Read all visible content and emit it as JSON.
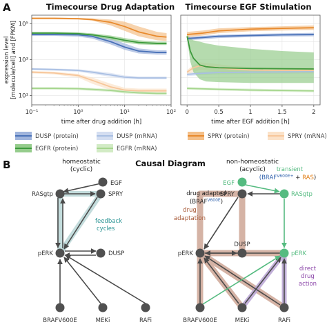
{
  "panels": {
    "a": "A",
    "b": "B"
  },
  "chart_data": [
    {
      "type": "line",
      "title": "Timecourse Drug Adaptation",
      "xlabel": "time after drug addition [h]",
      "ylabel_lines": [
        "expression level",
        "[molecule/cell] and [FPKM]"
      ],
      "xscale": "log",
      "yscale": "log",
      "xlim": [
        0.1,
        100
      ],
      "ylim": [
        3,
        300000
      ],
      "x_ticks": [
        0.1,
        1,
        10,
        100
      ],
      "x_tick_labels": [
        "10⁻¹",
        "10⁰",
        "10¹",
        "10²"
      ],
      "y_ticks": [
        10,
        1000,
        100000
      ],
      "y_tick_labels": [
        "10¹",
        "10³",
        "10⁵"
      ],
      "grid": true,
      "series": [
        {
          "key": "spry_p",
          "x": [
            0.1,
            0.3,
            1,
            2,
            5,
            10,
            20,
            50,
            80
          ],
          "y": [
            200000,
            200000,
            190000,
            170000,
            120000,
            70000,
            35000,
            20000,
            18000
          ],
          "lo": [
            180000,
            180000,
            170000,
            150000,
            80000,
            40000,
            20000,
            12000,
            11000
          ],
          "hi": [
            220000,
            220000,
            210000,
            200000,
            170000,
            130000,
            70000,
            35000,
            30000
          ]
        },
        {
          "key": "egfr_p",
          "x": [
            0.1,
            0.3,
            1,
            2,
            5,
            10,
            20,
            50,
            80
          ],
          "y": [
            30000,
            30000,
            28000,
            24000,
            17000,
            12000,
            9000,
            8000,
            8000
          ],
          "lo": [
            25000,
            25000,
            23000,
            19000,
            13000,
            9000,
            7000,
            6500,
            6500
          ],
          "hi": [
            35000,
            35000,
            33000,
            29000,
            22000,
            16000,
            12000,
            10000,
            10000
          ]
        },
        {
          "key": "dusp_p",
          "x": [
            0.1,
            0.3,
            1,
            2,
            5,
            10,
            20,
            50,
            80
          ],
          "y": [
            25000,
            25000,
            24000,
            20000,
            10000,
            5000,
            3000,
            2500,
            2500
          ],
          "lo": [
            21000,
            21000,
            19000,
            15000,
            7000,
            3500,
            2200,
            1900,
            1900
          ],
          "hi": [
            30000,
            30000,
            29000,
            26000,
            15000,
            8000,
            4200,
            3300,
            3300
          ]
        },
        {
          "key": "dusp_m",
          "x": [
            0.1,
            0.3,
            1,
            2,
            5,
            10,
            20,
            50,
            80
          ],
          "y": [
            300,
            280,
            250,
            200,
            140,
            105,
            95,
            95,
            95
          ],
          "lo": [
            260,
            240,
            210,
            160,
            110,
            85,
            80,
            80,
            80
          ],
          "hi": [
            340,
            320,
            290,
            240,
            180,
            130,
            115,
            115,
            115
          ]
        },
        {
          "key": "spry_m",
          "x": [
            0.1,
            0.3,
            1,
            2,
            5,
            10,
            20,
            50,
            80
          ],
          "y": [
            200,
            180,
            130,
            70,
            30,
            20,
            18,
            18,
            18
          ],
          "lo": [
            170,
            150,
            100,
            45,
            20,
            15,
            14,
            14,
            14
          ],
          "hi": [
            230,
            210,
            160,
            100,
            45,
            27,
            24,
            24,
            24
          ]
        },
        {
          "key": "egfr_m",
          "x": [
            0.1,
            0.3,
            1,
            2,
            5,
            10,
            20,
            50,
            80
          ],
          "y": [
            25,
            25,
            24,
            22,
            19,
            16,
            14,
            13,
            13
          ],
          "lo": [
            21,
            21,
            20,
            18,
            16,
            13,
            12,
            11,
            11
          ],
          "hi": [
            29,
            29,
            28,
            26,
            23,
            19,
            17,
            15,
            15
          ]
        }
      ]
    },
    {
      "type": "line",
      "title": "Timecourse EGF Stimulation",
      "xlabel": "time after EGF addition [h]",
      "xscale": "linear",
      "yscale": "log",
      "xlim": [
        -0.1,
        2.1
      ],
      "ylim": [
        3,
        300000
      ],
      "x_ticks": [
        0,
        0.5,
        1,
        1.5,
        2
      ],
      "x_tick_labels": [
        "0",
        "0.5",
        "1",
        "1.5",
        "2"
      ],
      "grid": true,
      "series": [
        {
          "key": "spry_p",
          "x": [
            0,
            0.25,
            0.5,
            1,
            1.5,
            2
          ],
          "y": [
            25000,
            30000,
            40000,
            50000,
            55000,
            60000
          ],
          "lo": [
            18000,
            22000,
            30000,
            38000,
            42000,
            45000
          ],
          "hi": [
            35000,
            42000,
            55000,
            65000,
            72000,
            80000
          ]
        },
        {
          "key": "dusp_p",
          "x": [
            0,
            0.25,
            0.5,
            1,
            1.5,
            2
          ],
          "y": [
            15000,
            17000,
            20000,
            22000,
            24000,
            25000
          ],
          "lo": [
            12000,
            13500,
            16000,
            18000,
            19500,
            20000
          ],
          "hi": [
            18000,
            21000,
            24000,
            27000,
            29000,
            31000
          ]
        },
        {
          "key": "egfr_p",
          "x": [
            0,
            0.05,
            0.1,
            0.2,
            0.3,
            0.5,
            1,
            1.5,
            2
          ],
          "y": [
            20000,
            3000,
            1200,
            500,
            400,
            350,
            320,
            310,
            300
          ],
          "lo": [
            15000,
            800,
            200,
            80,
            60,
            55,
            50,
            50,
            50
          ],
          "hi": [
            30000,
            15000,
            12000,
            10000,
            8000,
            6000,
            4000,
            3000,
            2500
          ]
        },
        {
          "key": "spry_m",
          "x": [
            0,
            0.1,
            0.2,
            0.4,
            0.7,
            1,
            1.5,
            2
          ],
          "y": [
            200,
            350,
            450,
            380,
            300,
            260,
            250,
            250
          ],
          "lo": [
            150,
            200,
            260,
            230,
            200,
            180,
            175,
            175
          ],
          "hi": [
            260,
            500,
            700,
            600,
            450,
            380,
            360,
            360
          ]
        },
        {
          "key": "dusp_m",
          "x": [
            0,
            0.2,
            0.5,
            1,
            1.5,
            2
          ],
          "y": [
            150,
            170,
            190,
            200,
            205,
            210
          ],
          "lo": [
            120,
            135,
            150,
            160,
            165,
            170
          ],
          "hi": [
            190,
            210,
            230,
            245,
            250,
            255
          ]
        },
        {
          "key": "egfr_m",
          "x": [
            0,
            0.5,
            1,
            1.5,
            2
          ],
          "y": [
            25,
            22,
            20,
            19,
            18
          ],
          "lo": [
            21,
            19,
            17,
            16,
            15
          ],
          "hi": [
            29,
            26,
            24,
            22,
            21
          ]
        }
      ]
    }
  ],
  "legend": [
    {
      "key": "dusp_p",
      "label": "DUSP (protein)",
      "color": "#4a72b8",
      "band": "#9fb4dc"
    },
    {
      "key": "dusp_m",
      "label": "DUSP (mRNA)",
      "color": "#a9bfe3",
      "band": "#d4def1"
    },
    {
      "key": "spry_p",
      "label": "SPRY (protein)",
      "color": "#e88a2d",
      "band": "#f4c08a"
    },
    {
      "key": "spry_m",
      "label": "SPRY (mRNA)",
      "color": "#f7c69a",
      "band": "#fbe2c9"
    },
    {
      "key": "egfr_p",
      "label": "EGFR (protein)",
      "color": "#3c9a3c",
      "band": "#95cc8c"
    },
    {
      "key": "egfr_m",
      "label": "EGFR (mRNA)",
      "color": "#a6d68e",
      "band": "#d2ebc5"
    }
  ],
  "diagram": {
    "title": "Causal Diagram",
    "left_header": [
      "homeostatic",
      "(cyclic)"
    ],
    "right_header": [
      "non-homeostatic",
      "(acyclic)"
    ],
    "nodes": {
      "egf": "EGF",
      "rasgtp": "RASgtp",
      "spry": "SPRY",
      "perk": "pERK",
      "dusp": "DUSP",
      "braf": "BRAFV600E",
      "meki": "MEKi",
      "rafi": "RAFi"
    },
    "ann_feedback": [
      "feedback",
      "cycles"
    ],
    "ann_drug_adapted": "drug adapted",
    "ann_braf_paren": "(BRAF",
    "ann_braf_sup": "V600E",
    "ann_braf_close": ")",
    "ann_transient": "transient",
    "ann_transient_braf": "(BRAF",
    "ann_transient_sup": "V600E+",
    "ann_transient_plus": " + ",
    "ann_transient_ras": "RAS",
    "ann_transient_close": ")",
    "ann_drug_adaptation": [
      "drug",
      "adaptation"
    ],
    "ann_direct": [
      "direct",
      "drug",
      "action"
    ],
    "colors": {
      "node": "#505050",
      "edge": "#4a4a4a",
      "feedback": "#b9d6d6",
      "feedback_text": "#2a9494",
      "adapt": "#c79a87",
      "adapt_text": "#a85a38",
      "direct": "#b8a3d3",
      "direct_text": "#8a44a8",
      "transient": "#55bb80",
      "blue_text": "#2d5fab",
      "ras_text": "#e07b10"
    }
  }
}
